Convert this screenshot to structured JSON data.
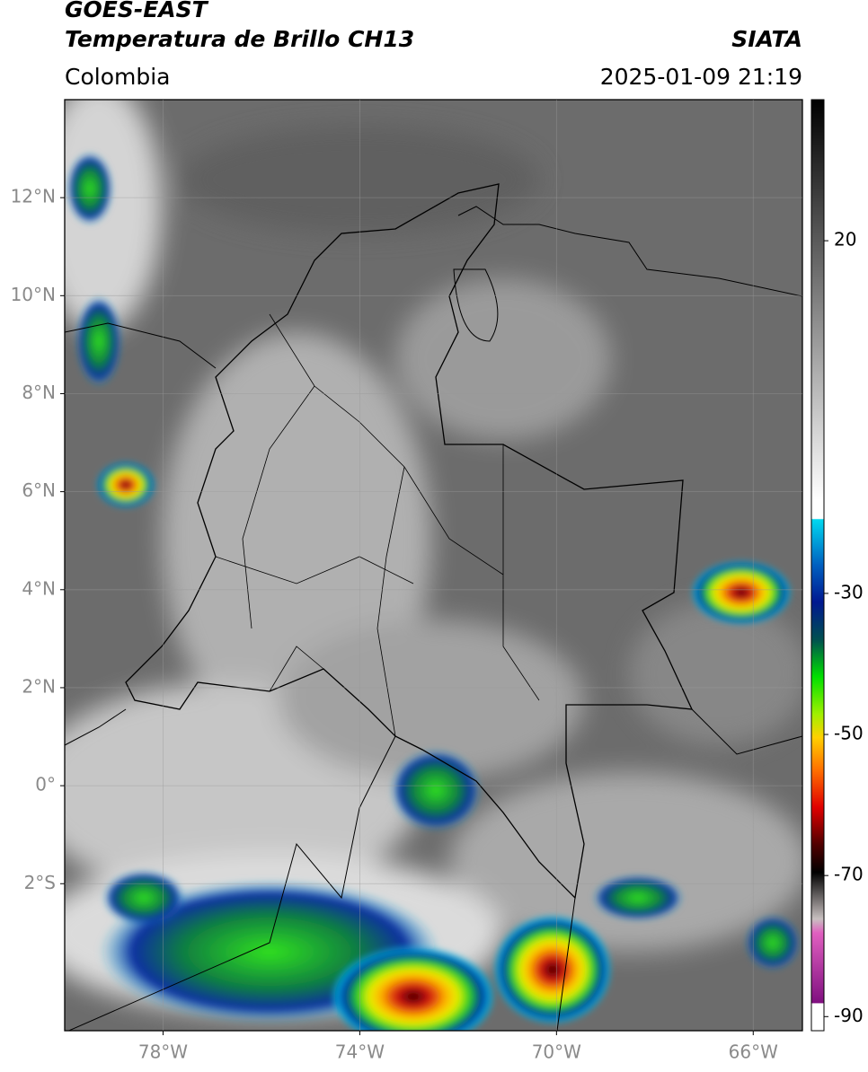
{
  "header": {
    "title_lines": [
      "GOES-EAST",
      "Temperatura de Brillo CH13"
    ],
    "source": "SIATA",
    "region": "Colombia",
    "timestamp": "2025-01-09 21:19"
  },
  "map": {
    "xlim": [
      -80,
      -65
    ],
    "ylim": [
      -5,
      14
    ],
    "xticks": [
      {
        "value": -78,
        "label": "78°W"
      },
      {
        "value": -74,
        "label": "74°W"
      },
      {
        "value": -70,
        "label": "70°W"
      },
      {
        "value": -66,
        "label": "66°W"
      }
    ],
    "yticks": [
      {
        "value": 12,
        "label": "12°N"
      },
      {
        "value": 10,
        "label": "10°N"
      },
      {
        "value": 8,
        "label": "8°N"
      },
      {
        "value": 6,
        "label": "6°N"
      },
      {
        "value": 4,
        "label": "4°N"
      },
      {
        "value": 2,
        "label": "2°N"
      },
      {
        "value": 0,
        "label": "0°"
      },
      {
        "value": -2,
        "label": "2°S"
      }
    ],
    "grid": true
  },
  "colorbar": {
    "lim": [
      -92,
      40
    ],
    "ticks": [
      20,
      -30,
      -50,
      -70,
      -90
    ]
  }
}
